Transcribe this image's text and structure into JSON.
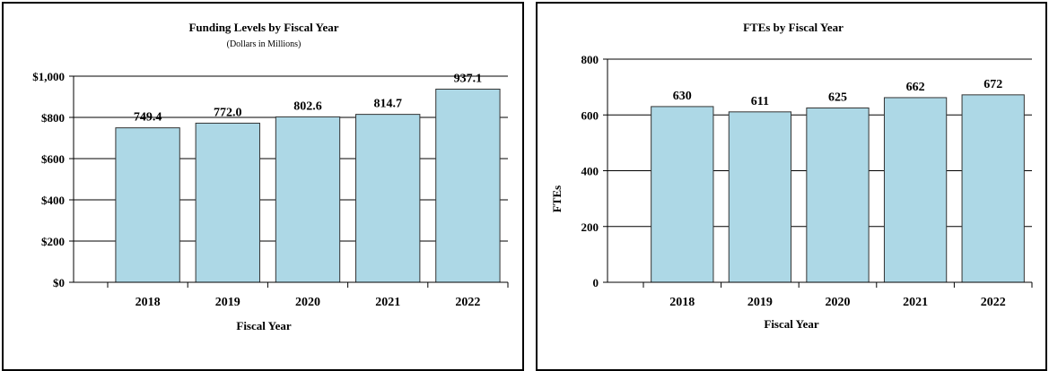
{
  "chart_data": [
    {
      "type": "bar",
      "title": "Funding Levels by Fiscal Year",
      "subtitle": "(Dollars in Millions)",
      "xlabel": "Fiscal Year",
      "ylabel": "",
      "categories": [
        "2018",
        "2019",
        "2020",
        "2021",
        "2022"
      ],
      "values": [
        749.4,
        772.0,
        802.6,
        814.7,
        937.1
      ],
      "data_labels": [
        "749.4",
        "772.0",
        "802.6",
        "814.7",
        "937.1"
      ],
      "ylim": [
        0,
        1000
      ],
      "yticks": [
        0,
        200,
        400,
        600,
        800,
        1000
      ],
      "ytick_labels": [
        "$0",
        "$200",
        "$400",
        "$600",
        "$800",
        "$1,000"
      ],
      "grid": true,
      "bar_color": "#add8e6"
    },
    {
      "type": "bar",
      "title": "FTEs by Fiscal Year",
      "subtitle": "",
      "xlabel": "Fiscal Year",
      "ylabel": "FTEs",
      "categories": [
        "2018",
        "2019",
        "2020",
        "2021",
        "2022"
      ],
      "values": [
        630,
        611,
        625,
        662,
        672
      ],
      "data_labels": [
        "630",
        "611",
        "625",
        "662",
        "672"
      ],
      "ylim": [
        0,
        800
      ],
      "yticks": [
        0,
        200,
        400,
        600,
        800
      ],
      "ytick_labels": [
        "0",
        "200",
        "400",
        "600",
        "800"
      ],
      "grid": true,
      "bar_color": "#add8e6"
    }
  ]
}
